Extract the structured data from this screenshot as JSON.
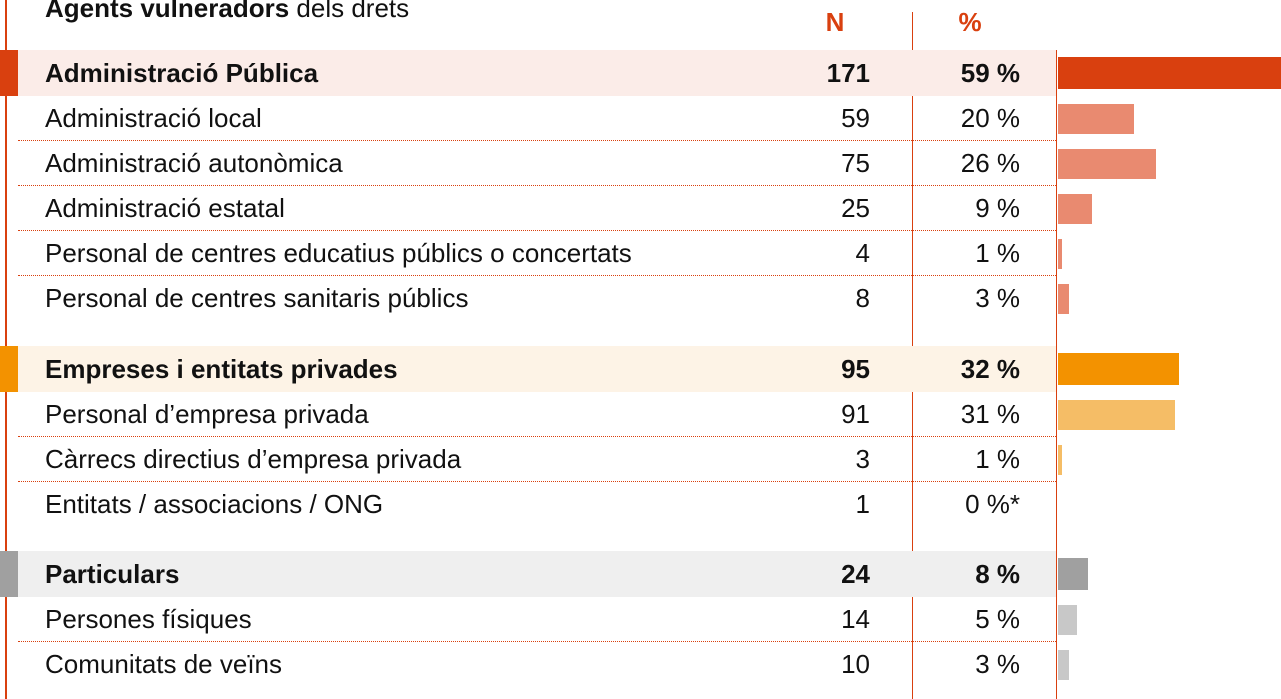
{
  "title": {
    "bold": "Agents vulneradors",
    "rest": "dels drets"
  },
  "header": {
    "n": "N",
    "pct": "%"
  },
  "groups": [
    {
      "label": "Administració Pública",
      "n": 171,
      "pct": 59,
      "pct_label": "59 %",
      "color": "#d9400f",
      "light_color": "#e98a70",
      "background": "#fbece8",
      "rows": [
        {
          "label": "Administració local",
          "n": 59,
          "pct": 20,
          "pct_label": "20 %"
        },
        {
          "label": "Administració autonòmica",
          "n": 75,
          "pct": 26,
          "pct_label": "26 %"
        },
        {
          "label": "Administració estatal",
          "n": 25,
          "pct": 9,
          "pct_label": "9 %"
        },
        {
          "label": "Personal de centres educatius públics o concertats",
          "n": 4,
          "pct": 1,
          "pct_label": "1 %"
        },
        {
          "label": "Personal de centres sanitaris públics",
          "n": 8,
          "pct": 3,
          "pct_label": "3 %"
        }
      ]
    },
    {
      "label": "Empreses i entitats privades",
      "n": 95,
      "pct": 32,
      "pct_label": "32 %",
      "color": "#f39200",
      "light_color": "#f5bd66",
      "background": "#fdf3e6",
      "rows": [
        {
          "label": "Personal d’empresa privada",
          "n": 91,
          "pct": 31,
          "pct_label": "31 %"
        },
        {
          "label": "Càrrecs directius d’empresa privada",
          "n": 3,
          "pct": 1,
          "pct_label": "1 %"
        },
        {
          "label": "Entitats / associacions / ONG",
          "n": 1,
          "pct": 0,
          "pct_label": "0 %*"
        }
      ]
    },
    {
      "label": "Particulars",
      "n": 24,
      "pct": 8,
      "pct_label": "8 %",
      "color": "#a0a0a0",
      "light_color": "#c8c8c8",
      "background": "#efefef",
      "rows": [
        {
          "label": "Persones físiques",
          "n": 14,
          "pct": 5,
          "pct_label": "5 %"
        },
        {
          "label": "Comunitats de veïns",
          "n": 10,
          "pct": 3,
          "pct_label": "3 %"
        }
      ]
    }
  ]
}
